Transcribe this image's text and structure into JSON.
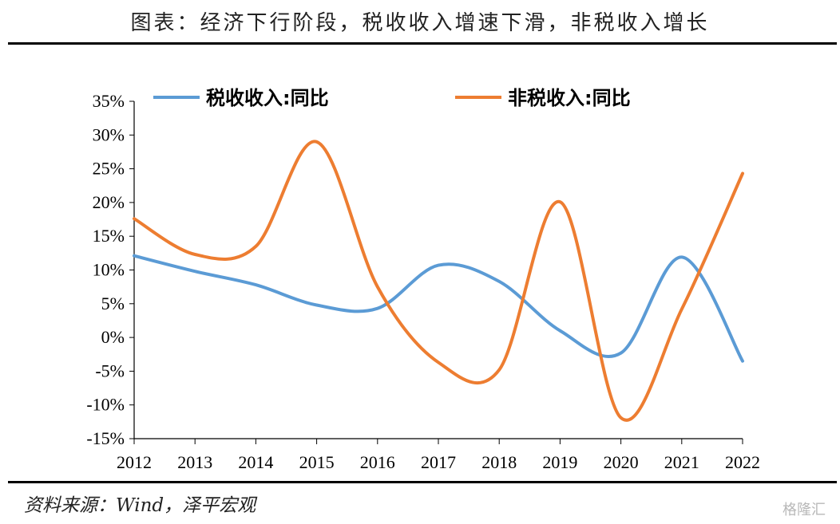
{
  "header": {
    "title": "图表：经济下行阶段，税收收入增速下滑，非税收入增长"
  },
  "footer": {
    "source": "资料来源：Wind，泽平宏观",
    "watermark": "格隆汇"
  },
  "chart_data": {
    "type": "line",
    "smooth": true,
    "title": "",
    "xlabel": "",
    "ylabel": "",
    "categories": [
      "2012",
      "2013",
      "2014",
      "2015",
      "2016",
      "2017",
      "2018",
      "2019",
      "2020",
      "2021",
      "2022"
    ],
    "ylim": [
      -15,
      35
    ],
    "ytick_step": 5,
    "yticks": [
      "35%",
      "30%",
      "25%",
      "20%",
      "15%",
      "10%",
      "5%",
      "0%",
      "-5%",
      "-10%",
      "-15%"
    ],
    "grid": false,
    "legend_position": "top",
    "series": [
      {
        "name": "税收收入:同比",
        "color": "#5B9BD5",
        "values": [
          12.1,
          9.8,
          7.8,
          4.8,
          4.3,
          10.7,
          8.3,
          1.0,
          -2.3,
          11.9,
          -3.5
        ]
      },
      {
        "name": "非税收入:同比",
        "color": "#ED7D31",
        "values": [
          17.6,
          12.3,
          13.5,
          29.0,
          7.5,
          -3.7,
          -4.8,
          20.1,
          -11.9,
          4.2,
          24.3
        ]
      }
    ]
  }
}
